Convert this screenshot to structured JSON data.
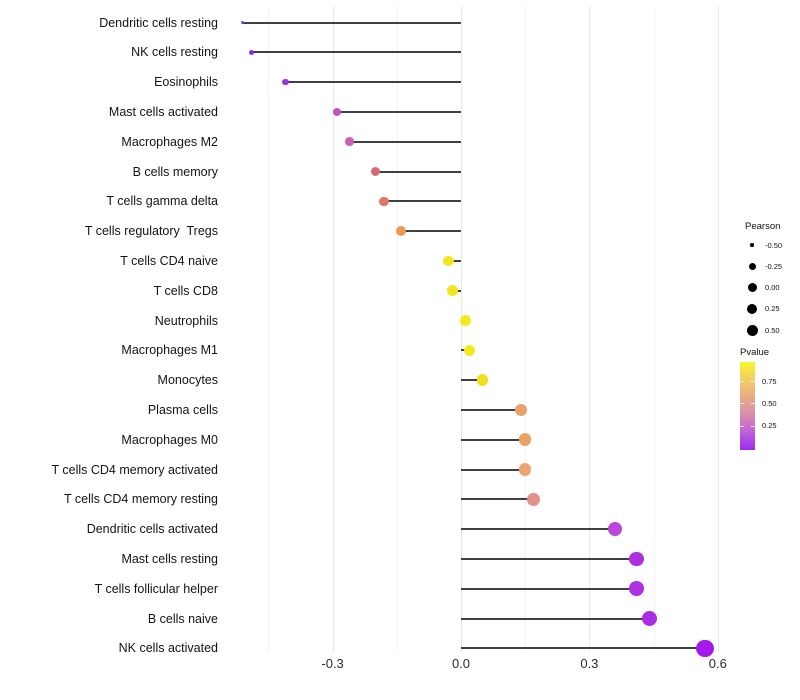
{
  "chart_data": {
    "type": "lollipop",
    "orientation": "horizontal",
    "xlabel": "",
    "ylabel": "",
    "xlim": [
      -0.54,
      0.64
    ],
    "grid": {
      "major": [
        -0.3,
        0.0,
        0.3,
        0.6
      ],
      "minor": [
        -0.45,
        -0.15,
        0.15,
        0.45
      ]
    },
    "x_ticks": [
      {
        "value": -0.3,
        "label": "-0.3"
      },
      {
        "value": 0.0,
        "label": "0.0"
      },
      {
        "value": 0.3,
        "label": "0.3"
      },
      {
        "value": 0.6,
        "label": "0.6"
      }
    ],
    "stem_color": "#404040",
    "points": [
      {
        "label": "Dendritic cells resting",
        "pearson": -0.51,
        "color": "#8f3bc9",
        "radius": 1.6
      },
      {
        "label": "NK cells resting",
        "pearson": -0.49,
        "color": "#8c2fd6",
        "radius": 2.6
      },
      {
        "label": "Eosinophils",
        "pearson": -0.41,
        "color": "#9c36d6",
        "radius": 3.4
      },
      {
        "label": "Mast cells activated",
        "pearson": -0.29,
        "color": "#c253c0",
        "radius": 4.1
      },
      {
        "label": "Macrophages M2",
        "pearson": -0.26,
        "color": "#c95fb5",
        "radius": 4.3
      },
      {
        "label": "B cells memory",
        "pearson": -0.2,
        "color": "#d76a73",
        "radius": 4.6
      },
      {
        "label": "T cells gamma delta",
        "pearson": -0.18,
        "color": "#de7767",
        "radius": 4.7
      },
      {
        "label": "T cells regulatory  Tregs",
        "pearson": -0.14,
        "color": "#f09a51",
        "radius": 5.0
      },
      {
        "label": "T cells CD4 naive",
        "pearson": -0.03,
        "color": "#f3e620",
        "radius": 5.4
      },
      {
        "label": "T cells CD8",
        "pearson": -0.02,
        "color": "#f3e620",
        "radius": 5.4
      },
      {
        "label": "Neutrophils",
        "pearson": 0.01,
        "color": "#f4e91e",
        "radius": 5.6
      },
      {
        "label": "Macrophages M1",
        "pearson": 0.02,
        "color": "#f4e91e",
        "radius": 5.6
      },
      {
        "label": "Monocytes",
        "pearson": 0.05,
        "color": "#f2de1e",
        "radius": 5.8
      },
      {
        "label": "Plasma cells",
        "pearson": 0.14,
        "color": "#eca266",
        "radius": 6.2
      },
      {
        "label": "Macrophages M0",
        "pearson": 0.15,
        "color": "#eca266",
        "radius": 6.3
      },
      {
        "label": "T cells CD4 memory activated",
        "pearson": 0.15,
        "color": "#eda473",
        "radius": 6.3
      },
      {
        "label": "T cells CD4 memory resting",
        "pearson": 0.17,
        "color": "#e39089",
        "radius": 6.5
      },
      {
        "label": "Dendritic cells activated",
        "pearson": 0.36,
        "color": "#bc45da",
        "radius": 7.1
      },
      {
        "label": "Mast cells resting",
        "pearson": 0.41,
        "color": "#ae30e1",
        "radius": 7.4
      },
      {
        "label": "T cells follicular helper",
        "pearson": 0.41,
        "color": "#ae30e1",
        "radius": 7.4
      },
      {
        "label": "B cells naive",
        "pearson": 0.44,
        "color": "#ab2ce3",
        "radius": 7.6
      },
      {
        "label": "NK cells activated",
        "pearson": 0.57,
        "color": "#a31bea",
        "radius": 8.7
      }
    ],
    "legend_size": {
      "title": "Pearson",
      "entries": [
        {
          "label": "-0.50",
          "diameter": 3.5
        },
        {
          "label": "-0.25",
          "diameter": 7
        },
        {
          "label": "0.00",
          "diameter": 9
        },
        {
          "label": "0.25",
          "diameter": 10
        },
        {
          "label": "0.50",
          "diameter": 11
        }
      ],
      "dot_color": "#000000"
    },
    "legend_color": {
      "title": "Pvalue",
      "labels": [
        "0.75",
        "0.50",
        "0.25"
      ],
      "gradient_top_to_bottom": [
        "#f8f42a",
        "#f2cd67",
        "#e7ab86",
        "#dc90ab",
        "#c264d6",
        "#9c2bf2"
      ]
    }
  }
}
